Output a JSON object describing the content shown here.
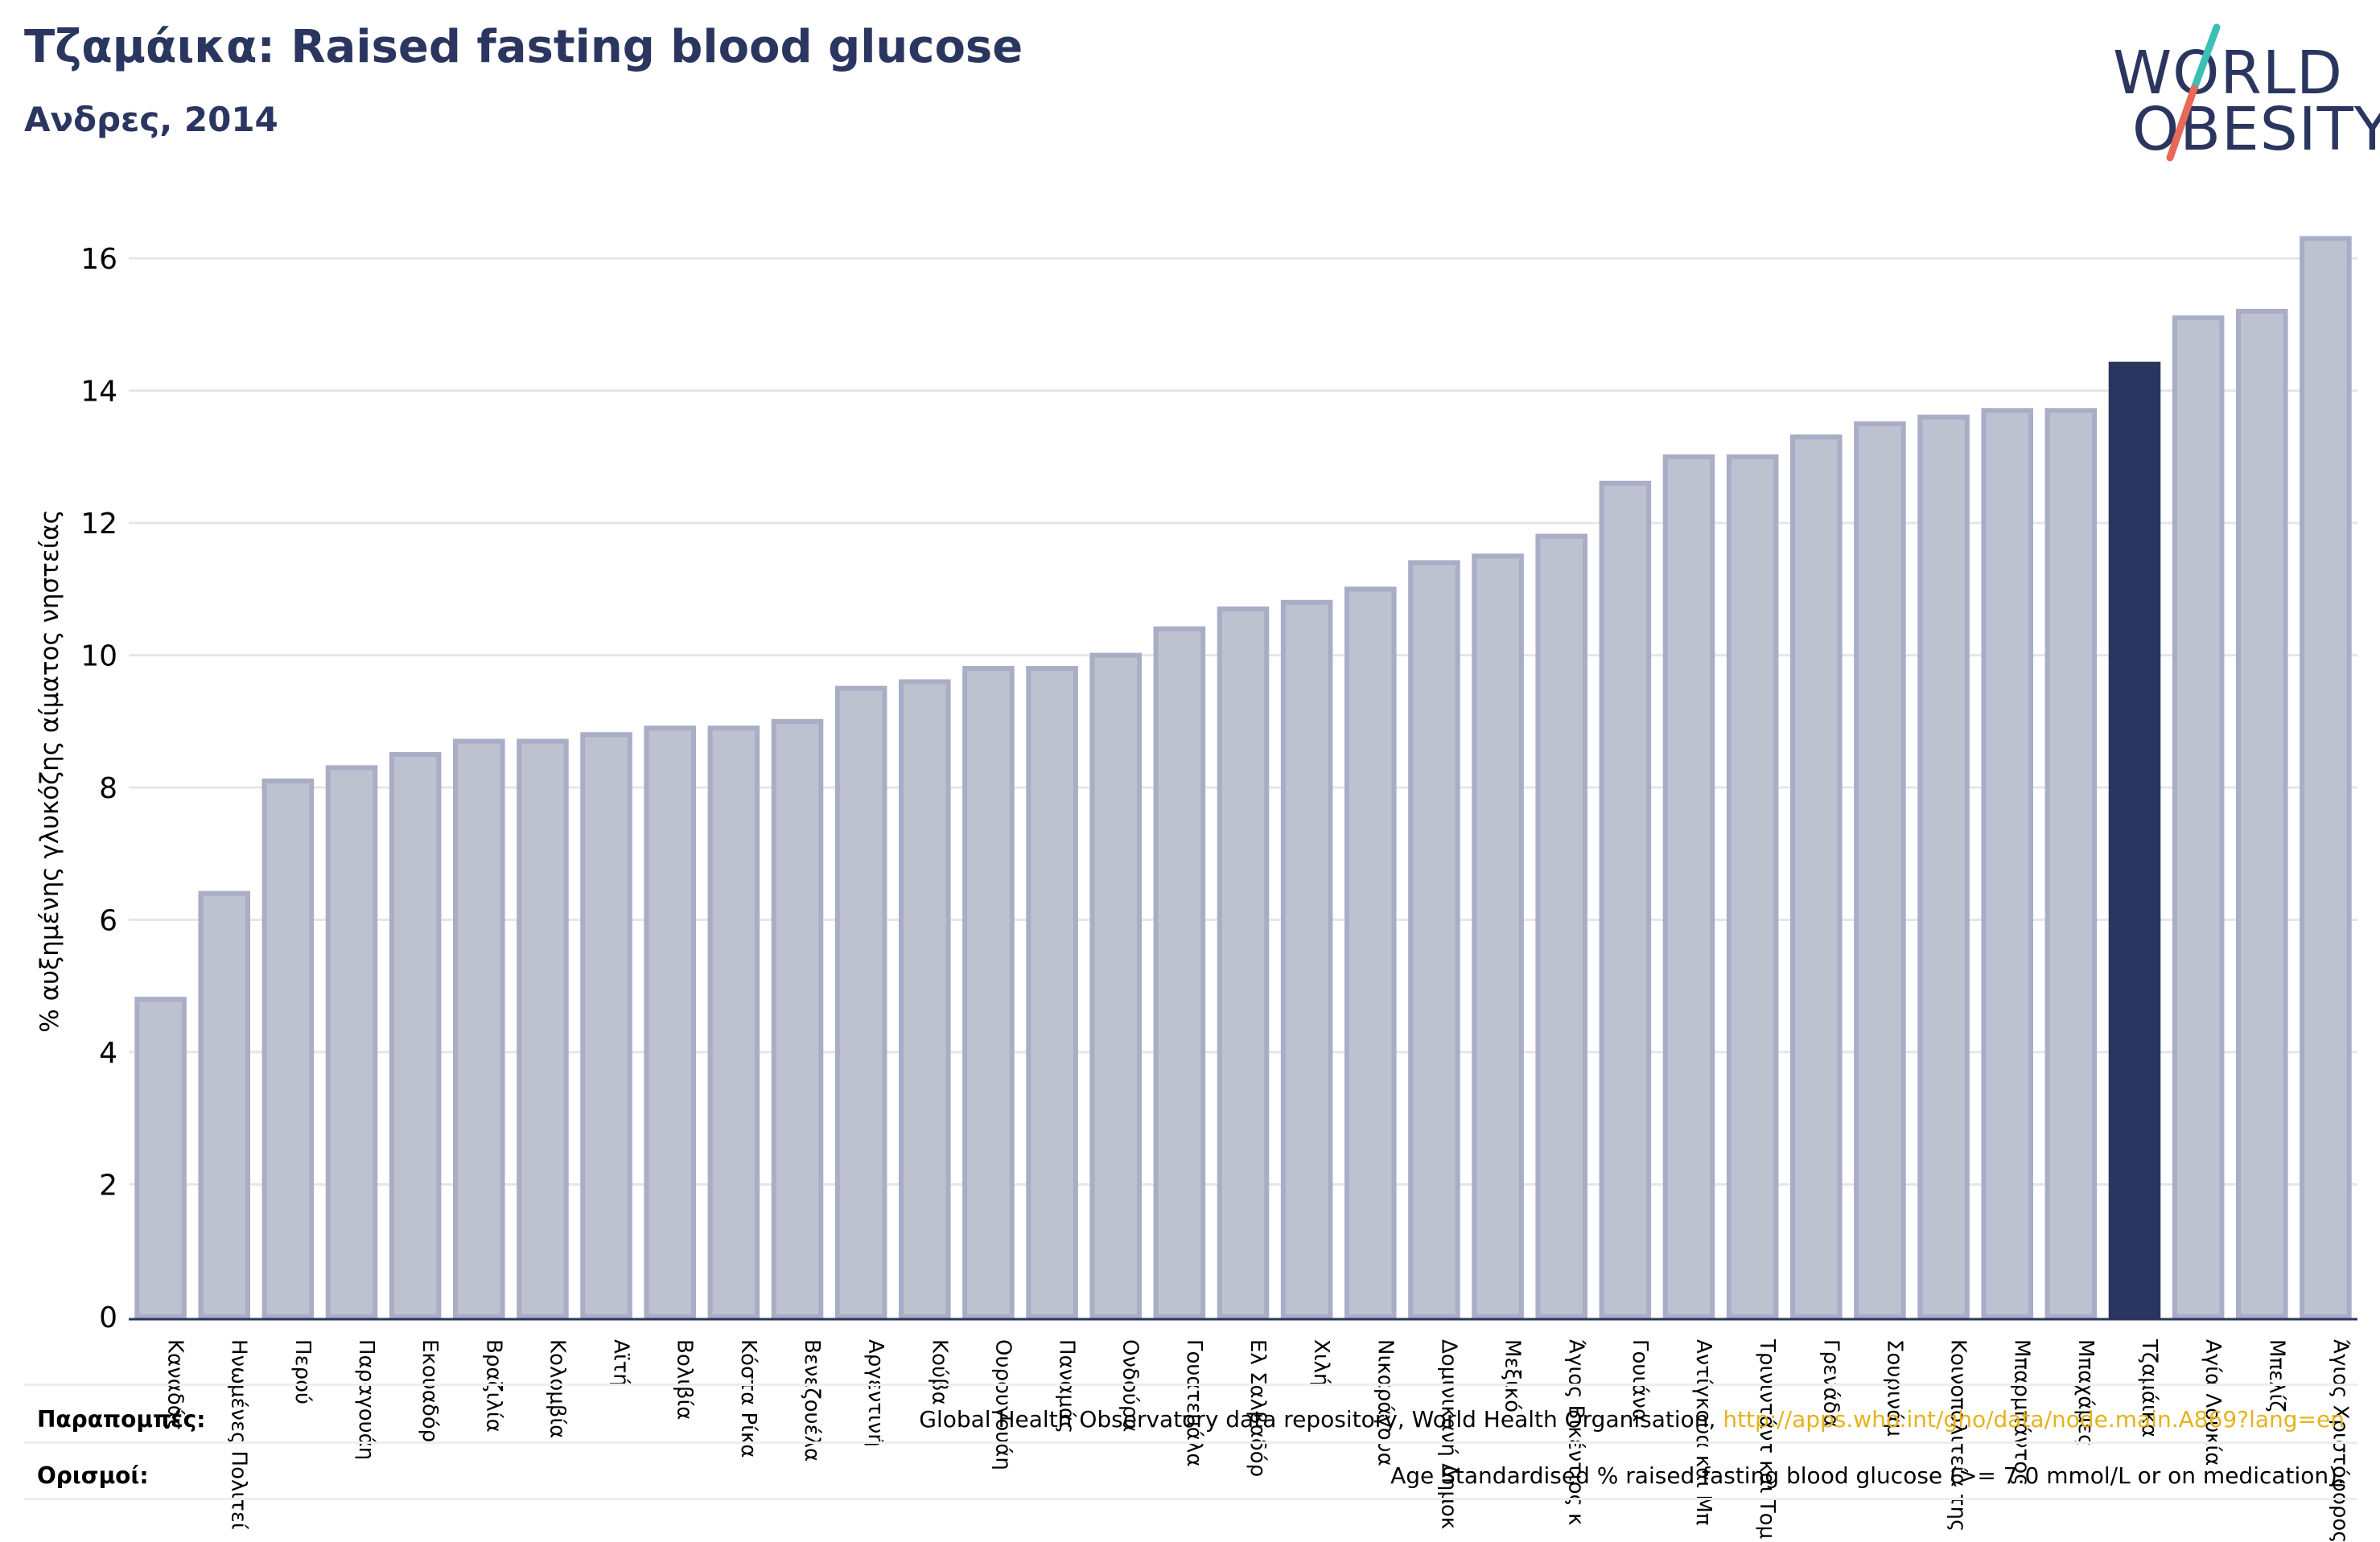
{
  "header": {
    "title": "Τζαμάικα: Raised fasting blood glucose",
    "subtitle": "Ανδρες, 2014"
  },
  "logo": {
    "line1": "WORLD",
    "line2": "OBESITY",
    "colors": {
      "text": "#2b3660",
      "slash_top": "#3bbfb6",
      "slash_bottom": "#e8685a"
    }
  },
  "footer": {
    "sources_label": "Παραπομπές:",
    "sources_text": "Global Health Observatory data repository, World Health Organisation, ",
    "sources_link": "http://apps.who.int/gho/data/node.main.A869?lang=en",
    "definitions_label": "Ορισμοί:",
    "definitions_text": "Age Standardised % raised fasting blood glucose (>= 7.0 mmol/L or on medication)."
  },
  "colors": {
    "bar": "#bec1cf",
    "bar_edge": "#a9adc5",
    "highlight": "#2b3660",
    "grid": "#e6e6e6",
    "axis": "#2b3660"
  },
  "chart_data": {
    "type": "bar",
    "title": "Τζαμάικα: Raised fasting blood glucose",
    "subtitle": "Ανδρες, 2014",
    "xlabel": "",
    "ylabel": "% αυξημένης γλυκόζης αίματος νηστείας",
    "ylim": [
      0,
      16.5
    ],
    "yticks": [
      0,
      2,
      4,
      6,
      8,
      10,
      12,
      14,
      16
    ],
    "grid": true,
    "highlight_category": "Τζαμάικα",
    "categories": [
      "Καναδάς",
      "Ηνωμένες Πολιτεί",
      "Περού",
      "Παραγουάη",
      "Εκουαδόρ",
      "Βραζιλία",
      "Κολομβία",
      "Αϊτή",
      "Βολιβία",
      "Κόστα Ρίκα",
      "Βενεζουέλα",
      "Αργεντινή",
      "Κούβα",
      "Ουρουγουάη",
      "Παναμάς",
      "Ονδούρα",
      "Γουατεμάλα",
      "Ελ Σαλβαδόρ",
      "Χιλή",
      "Νικαράγουα",
      "Δομινικανή Δημοκ",
      "Μεξικό",
      "Άγιος Βικέντιος κ",
      "Γουιάνα",
      "Αντίγκουα και Μπ",
      "Τρινιντάντ και Τομ",
      "Γρενάδα",
      "Σουρινάμ",
      "Κοινοπολιτεία της",
      "Μπαρμπάντος",
      "Μπαχάμες",
      "Τζαμάικα",
      "Αγία Λουκία",
      "Μπελίζ",
      "Άγιος Χριστόφορος"
    ],
    "values": [
      4.8,
      6.4,
      8.1,
      8.3,
      8.5,
      8.7,
      8.7,
      8.8,
      8.9,
      8.9,
      9.0,
      9.5,
      9.6,
      9.8,
      9.8,
      10.0,
      10.4,
      10.7,
      10.8,
      11.0,
      11.4,
      11.5,
      11.8,
      12.6,
      13.0,
      13.0,
      13.3,
      13.5,
      13.6,
      13.7,
      13.7,
      14.4,
      15.1,
      15.2,
      16.3
    ]
  }
}
